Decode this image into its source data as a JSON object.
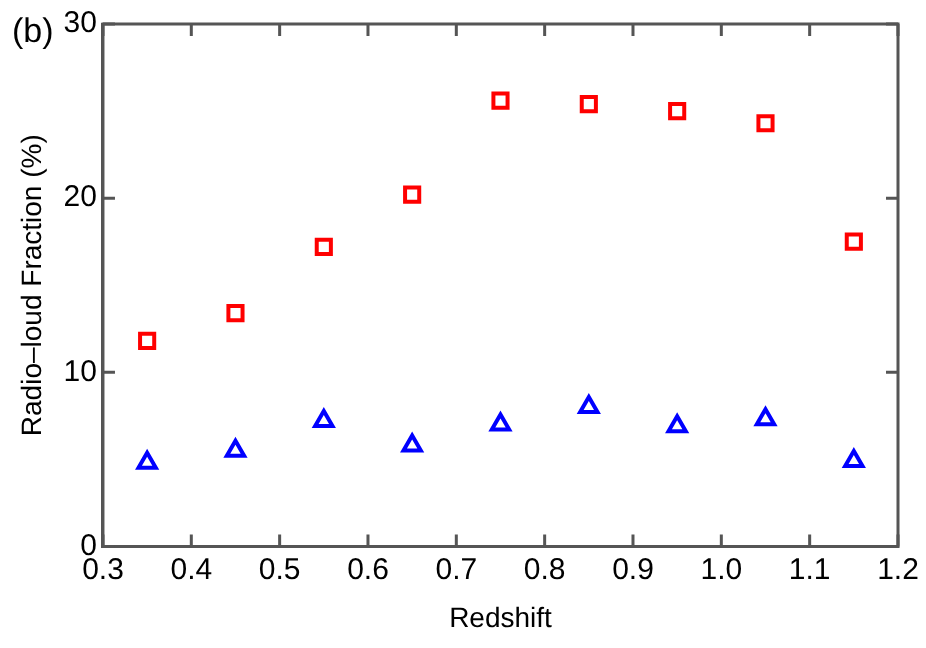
{
  "chart_data": {
    "type": "scatter",
    "xlabel": "Redshift",
    "ylabel": "Radio–loud Fraction (%)",
    "annotations": [
      "(b)"
    ],
    "x": [
      0.35,
      0.45,
      0.55,
      0.65,
      0.75,
      0.85,
      0.95,
      1.05,
      1.15
    ],
    "series": [
      {
        "color": "#ff0000",
        "marker": "square",
        "values": [
          11.8,
          13.4,
          17.2,
          20.2,
          25.6,
          25.4,
          25.0,
          24.3,
          17.5
        ]
      },
      {
        "color": "#0000ff",
        "marker": "triangle",
        "values": [
          4.8,
          5.5,
          7.2,
          5.8,
          7.0,
          8.0,
          6.9,
          7.3,
          4.9
        ]
      }
    ],
    "xlim": [
      0.3,
      1.2
    ],
    "xticks": [
      {
        "value": 0.3,
        "label": "0.3"
      },
      {
        "value": 0.4,
        "label": "0.4"
      },
      {
        "value": 0.5,
        "label": "0.5"
      },
      {
        "value": 0.6,
        "label": "0.6"
      },
      {
        "value": 0.7,
        "label": "0.7"
      },
      {
        "value": 0.8,
        "label": "0.8"
      },
      {
        "value": 0.9,
        "label": "0.9"
      },
      {
        "value": 1.0,
        "label": "1.0"
      },
      {
        "value": 1.1,
        "label": "1.1"
      },
      {
        "value": 1.2,
        "label": "1.2"
      }
    ],
    "ylim": [
      0,
      30
    ],
    "yticks": [
      0,
      10,
      20,
      30
    ],
    "grid": false,
    "legend": false
  }
}
